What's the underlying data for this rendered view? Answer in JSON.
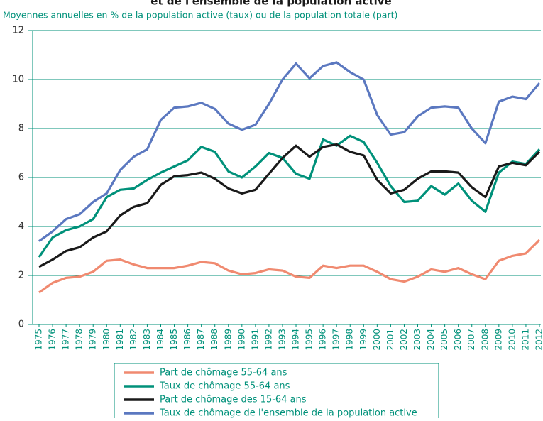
{
  "chart_data": {
    "type": "line",
    "title": "et de l'ensemble de la population active",
    "subtitle": "Moyennes annuelles en % de la population active (taux) ou de la population totale (part)",
    "categories": [
      "1975",
      "1976",
      "1977",
      "1978",
      "1979",
      "1980",
      "1981",
      "1982",
      "1983",
      "1984",
      "1985",
      "1986",
      "1987",
      "1988",
      "1989",
      "1990",
      "1991",
      "1992",
      "1993",
      "1994",
      "1995",
      "1996",
      "1997",
      "1998",
      "1999",
      "2000",
      "2001",
      "2002",
      "2003",
      "2004",
      "2005",
      "2006",
      "2007",
      "2008",
      "2009",
      "2010",
      "2011",
      "2012"
    ],
    "series": [
      {
        "name": "Part de chômage 55-64 ans",
        "color": "#f08a70",
        "values": [
          1.3,
          1.7,
          1.9,
          1.95,
          2.15,
          2.6,
          2.65,
          2.45,
          2.3,
          2.3,
          2.3,
          2.4,
          2.55,
          2.5,
          2.2,
          2.05,
          2.1,
          2.25,
          2.2,
          1.95,
          1.9,
          2.4,
          2.3,
          2.4,
          2.4,
          2.15,
          1.85,
          1.75,
          1.95,
          2.25,
          2.15,
          2.3,
          2.05,
          1.85,
          2.6,
          2.8,
          2.9,
          3.45
        ]
      },
      {
        "name": "Taux de chômage 55-64 ans",
        "color": "#00917a",
        "values": [
          2.75,
          3.55,
          3.85,
          4.0,
          4.3,
          5.2,
          5.5,
          5.55,
          5.9,
          6.2,
          6.45,
          6.7,
          7.25,
          7.05,
          6.25,
          6.0,
          6.45,
          7.0,
          6.8,
          6.15,
          5.95,
          7.55,
          7.3,
          7.7,
          7.45,
          6.6,
          5.65,
          5.0,
          5.05,
          5.65,
          5.3,
          5.75,
          5.05,
          4.6,
          6.2,
          6.65,
          6.55,
          7.15
        ]
      },
      {
        "name": "Part de chômage des 15-64 ans",
        "color": "#1a1a1a",
        "values": [
          2.35,
          2.65,
          3.0,
          3.15,
          3.55,
          3.8,
          4.45,
          4.8,
          4.95,
          5.7,
          6.05,
          6.1,
          6.2,
          5.95,
          5.55,
          5.35,
          5.5,
          6.15,
          6.8,
          7.3,
          6.85,
          7.25,
          7.35,
          7.05,
          6.9,
          5.9,
          5.35,
          5.5,
          5.95,
          6.25,
          6.25,
          6.2,
          5.6,
          5.2,
          6.45,
          6.6,
          6.5,
          7.05
        ]
      },
      {
        "name": "Taux de chômage de l'ensemble de la population active",
        "color": "#5b78c0",
        "values": [
          3.4,
          3.8,
          4.3,
          4.5,
          5.0,
          5.35,
          6.3,
          6.85,
          7.15,
          8.35,
          8.85,
          8.9,
          9.05,
          8.8,
          8.2,
          7.95,
          8.15,
          9.0,
          10.0,
          10.65,
          10.05,
          10.55,
          10.7,
          10.3,
          10.0,
          8.55,
          7.75,
          7.85,
          8.5,
          8.85,
          8.9,
          8.85,
          8.0,
          7.4,
          9.1,
          9.3,
          9.2,
          9.85
        ]
      }
    ],
    "ylim": [
      0,
      12
    ],
    "yticks": [
      0,
      2,
      4,
      6,
      8,
      10,
      12
    ],
    "grid": true,
    "axis_color": "#00917a"
  }
}
